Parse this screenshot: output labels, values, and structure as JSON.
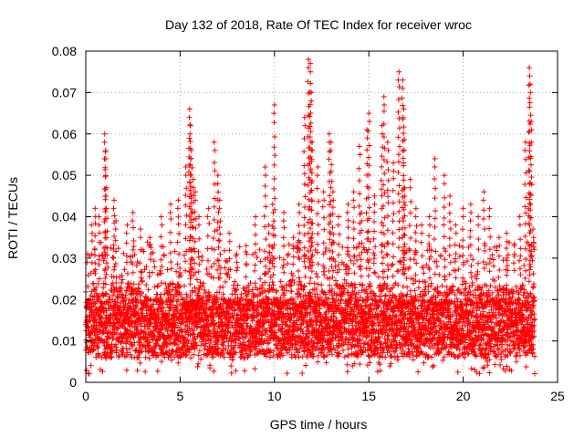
{
  "chart_data": {
    "type": "scatter",
    "title": "Day 132 of 2018, Rate Of TEC Index for receiver wroc",
    "xlabel": "GPS time / hours",
    "ylabel": "ROTI / TECUs",
    "xlim": [
      0,
      25
    ],
    "ylim": [
      0,
      0.08
    ],
    "x_ticks": [
      0,
      5,
      10,
      15,
      20,
      25
    ],
    "y_ticks": [
      0,
      0.01,
      0.02,
      0.03,
      0.04,
      0.05,
      0.06,
      0.07,
      0.08
    ],
    "x_tick_labels": [
      "0",
      "5",
      "10",
      "15",
      "20",
      "25"
    ],
    "y_tick_labels": [
      "0",
      "0.01",
      "0.02",
      "0.03",
      "0.04",
      "0.05",
      "0.06",
      "0.07",
      "0.08"
    ],
    "grid": true,
    "marker": "+",
    "color": "#ff0000",
    "data_x_range": [
      0,
      23.8
    ],
    "series": [
      {
        "name": "ROTI",
        "x": [
          0.1,
          0.3,
          0.5,
          0.7,
          1.0,
          1.05,
          1.1,
          1.5,
          1.6,
          2.2,
          2.5,
          2.9,
          3.4,
          4.0,
          4.5,
          4.9,
          5.3,
          5.5,
          5.55,
          5.6,
          5.7,
          5.8,
          6.0,
          6.5,
          6.8,
          7.0,
          7.1,
          7.6,
          8.0,
          8.5,
          9.0,
          9.5,
          9.7,
          9.9,
          10.0,
          10.5,
          11.0,
          11.3,
          11.6,
          11.8,
          11.9,
          11.95,
          12.0,
          12.3,
          12.6,
          12.9,
          13.0,
          13.1,
          13.4,
          13.9,
          14.2,
          14.5,
          14.6,
          14.9,
          15.0,
          15.3,
          15.7,
          15.8,
          16.0,
          16.3,
          16.6,
          16.8,
          16.85,
          16.9,
          17.2,
          17.5,
          17.8,
          18.2,
          18.5,
          19.0,
          19.3,
          19.6,
          20.0,
          20.4,
          20.8,
          21.1,
          21.4,
          21.9,
          22.3,
          22.7,
          23.0,
          23.3,
          23.5,
          23.55,
          23.6,
          23.7
        ],
        "y": [
          0.031,
          0.038,
          0.042,
          0.04,
          0.06,
          0.056,
          0.047,
          0.044,
          0.039,
          0.038,
          0.041,
          0.037,
          0.035,
          0.04,
          0.043,
          0.044,
          0.052,
          0.066,
          0.062,
          0.056,
          0.049,
          0.046,
          0.04,
          0.042,
          0.058,
          0.05,
          0.044,
          0.036,
          0.031,
          0.033,
          0.04,
          0.052,
          0.038,
          0.043,
          0.067,
          0.041,
          0.035,
          0.043,
          0.064,
          0.078,
          0.077,
          0.07,
          0.058,
          0.052,
          0.046,
          0.06,
          0.058,
          0.046,
          0.04,
          0.043,
          0.046,
          0.057,
          0.041,
          0.061,
          0.065,
          0.045,
          0.062,
          0.069,
          0.058,
          0.053,
          0.075,
          0.073,
          0.066,
          0.047,
          0.049,
          0.042,
          0.038,
          0.04,
          0.054,
          0.05,
          0.045,
          0.038,
          0.042,
          0.043,
          0.04,
          0.046,
          0.042,
          0.035,
          0.036,
          0.033,
          0.04,
          0.058,
          0.076,
          0.072,
          0.063,
          0.037
        ]
      }
    ]
  }
}
